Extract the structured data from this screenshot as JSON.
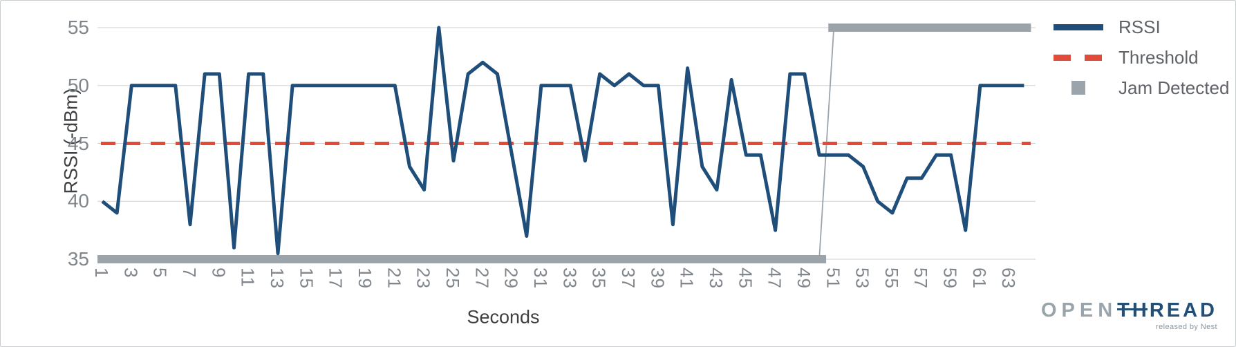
{
  "axes": {
    "x_title": "Seconds",
    "y_title": "RSSI (-dBm)"
  },
  "legend": {
    "items": [
      {
        "label": "RSSI",
        "swatch": "solid-line"
      },
      {
        "label": "Threshold",
        "swatch": "dashed-line"
      },
      {
        "label": "Jam Detected",
        "swatch": "square"
      }
    ]
  },
  "logo": {
    "part1": "OPEN",
    "part2": "THREAD",
    "tagline": "released by Nest"
  },
  "chart_data": {
    "type": "line",
    "title": "",
    "xlabel": "Seconds",
    "ylabel": "RSSI (-dBm)",
    "x_range": [
      1,
      64
    ],
    "ylim": [
      35,
      55
    ],
    "grid": true,
    "legend_position": "right",
    "yticks": [
      35,
      40,
      45,
      50,
      55
    ],
    "xticks": [
      1,
      3,
      5,
      7,
      9,
      11,
      13,
      15,
      17,
      19,
      21,
      23,
      25,
      27,
      29,
      31,
      33,
      35,
      37,
      39,
      41,
      43,
      45,
      47,
      49,
      51,
      53,
      55,
      57,
      59,
      61,
      63
    ],
    "colors": {
      "rssi": "#1f4e7a",
      "threshold": "#e14b3a",
      "jam": "#9ba4ab",
      "grid": "#cfd2d3"
    },
    "series": [
      {
        "name": "RSSI",
        "type": "line",
        "color": "#1f4e7a",
        "x_start": 1,
        "values": [
          40,
          39,
          50,
          50,
          50,
          50,
          38,
          51,
          51,
          36,
          51,
          51,
          35.5,
          50,
          50,
          50,
          50,
          50,
          50,
          50,
          50,
          43,
          41,
          55,
          43.5,
          51,
          52,
          51,
          44,
          37,
          50,
          50,
          50,
          43.5,
          51,
          50,
          51,
          50,
          50,
          38,
          51.5,
          43,
          41,
          50.5,
          44,
          44,
          37.5,
          51,
          51,
          44,
          44,
          44,
          43,
          40,
          39,
          42,
          42,
          44,
          44,
          37.5,
          50,
          50,
          50,
          50
        ]
      },
      {
        "name": "Threshold",
        "type": "dashed-line",
        "color": "#e14b3a",
        "value": 45
      },
      {
        "name": "Jam Detected",
        "type": "marker-bar",
        "color": "#9ba4ab",
        "segments": [
          {
            "from": 1,
            "to": 50,
            "value": 35
          },
          {
            "from": 51,
            "to": 64,
            "value": 55
          }
        ],
        "connector": true
      }
    ]
  }
}
